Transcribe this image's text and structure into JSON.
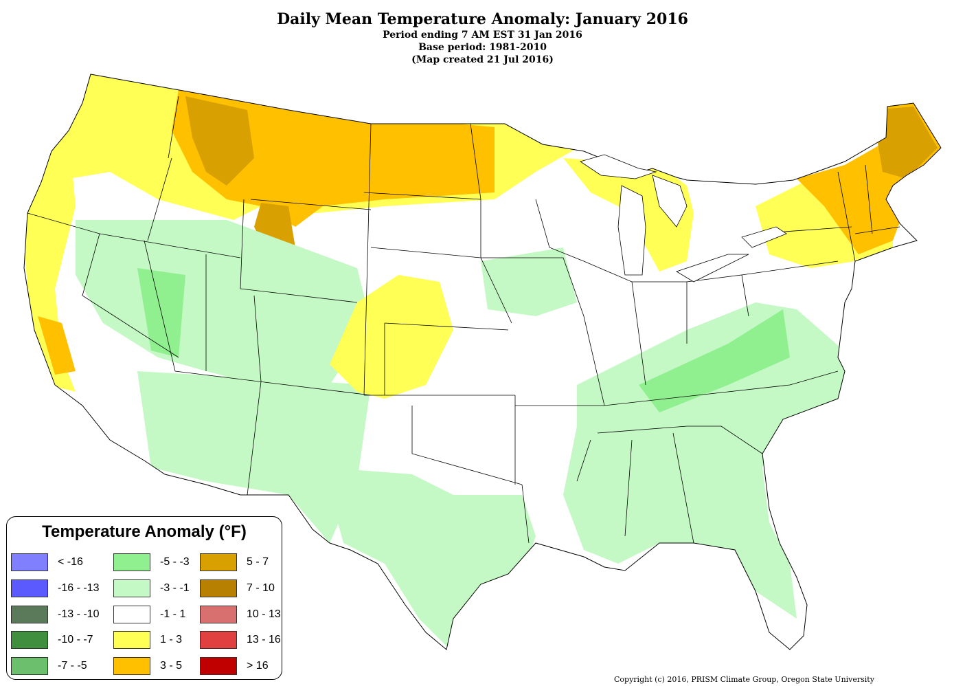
{
  "header": {
    "title": "Daily Mean Temperature Anomaly: January 2016",
    "line1": "Period ending 7 AM EST 31 Jan 2016",
    "line2": "Base period: 1981-2010",
    "line3": "(Map created 21 Jul 2016)"
  },
  "legend": {
    "title": "Temperature Anomaly (°F)",
    "items": [
      {
        "label": "< -16",
        "color": "#8080ff"
      },
      {
        "label": "-16 - -13",
        "color": "#5a5aff"
      },
      {
        "label": "-13 - -10",
        "color": "#5a7a5a"
      },
      {
        "label": "-10 - -7",
        "color": "#3f8f3f"
      },
      {
        "label": "-7 - -5",
        "color": "#6cbf6c"
      },
      {
        "label": "-5 - -3",
        "color": "#90f090"
      },
      {
        "label": "-3 - -1",
        "color": "#c4f8c4"
      },
      {
        "label": "-1 - 1",
        "color": "#ffffff"
      },
      {
        "label": "1 - 3",
        "color": "#ffff55"
      },
      {
        "label": "3 - 5",
        "color": "#ffc000"
      },
      {
        "label": "5 - 7",
        "color": "#d8a000"
      },
      {
        "label": "7 - 10",
        "color": "#b88000"
      },
      {
        "label": "10 - 13",
        "color": "#d87070"
      },
      {
        "label": "13 - 16",
        "color": "#e04040"
      },
      {
        "label": "> 16",
        "color": "#c00000"
      }
    ]
  },
  "copyright": "Copyright (c) 2016, PRISM Climate Group, Oregon State University"
}
